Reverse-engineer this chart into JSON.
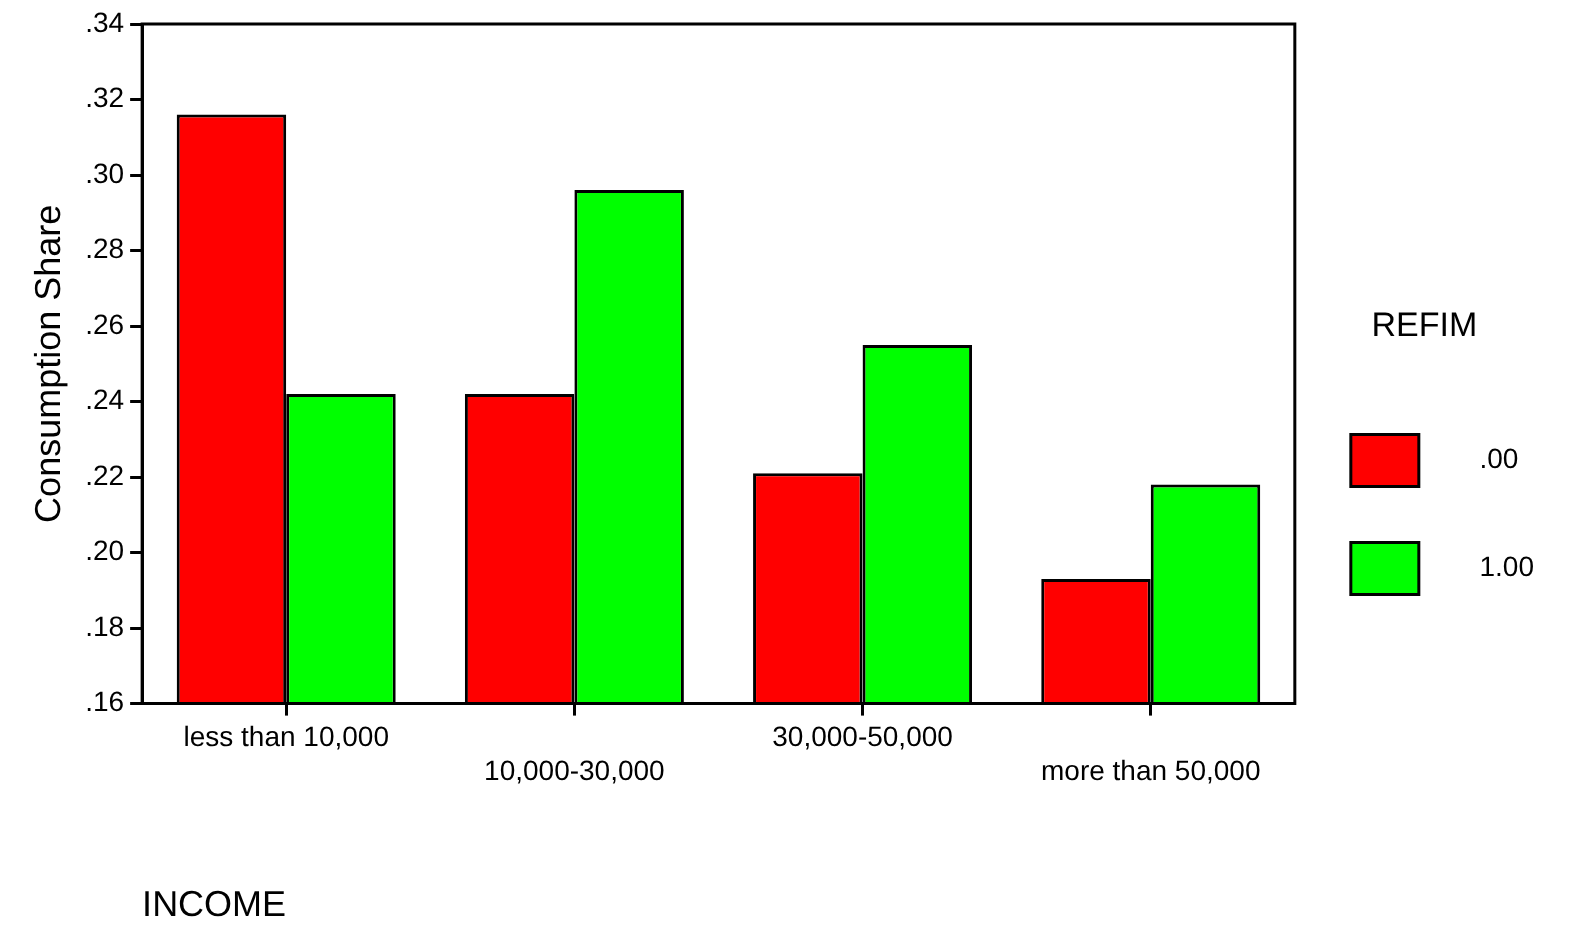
{
  "chart_data": {
    "type": "bar",
    "xlabel": "INCOME",
    "ylabel": "Consumption Share",
    "legend_title": "REFIM",
    "legend": "right",
    "grid": false,
    "categories": [
      "less than 10,000",
      "10,000-30,000",
      "30,000-50,000",
      "more than 50,000"
    ],
    "series": [
      {
        "name": ".00",
        "color": "#ff0000",
        "values": [
          0.316,
          0.242,
          0.221,
          0.193
        ]
      },
      {
        "name": "1.00",
        "color": "#00ff00",
        "values": [
          0.242,
          0.296,
          0.255,
          0.218
        ]
      }
    ],
    "ylim": [
      0.16,
      0.34
    ],
    "yticks": [
      {
        "value": 0.16,
        "label": ".16"
      },
      {
        "value": 0.18,
        "label": ".18"
      },
      {
        "value": 0.2,
        "label": ".20"
      },
      {
        "value": 0.22,
        "label": ".22"
      },
      {
        "value": 0.24,
        "label": ".24"
      },
      {
        "value": 0.26,
        "label": ".26"
      },
      {
        "value": 0.28,
        "label": ".28"
      },
      {
        "value": 0.3,
        "label": ".30"
      },
      {
        "value": 0.32,
        "label": ".32"
      },
      {
        "value": 0.34,
        "label": ".34"
      }
    ]
  }
}
